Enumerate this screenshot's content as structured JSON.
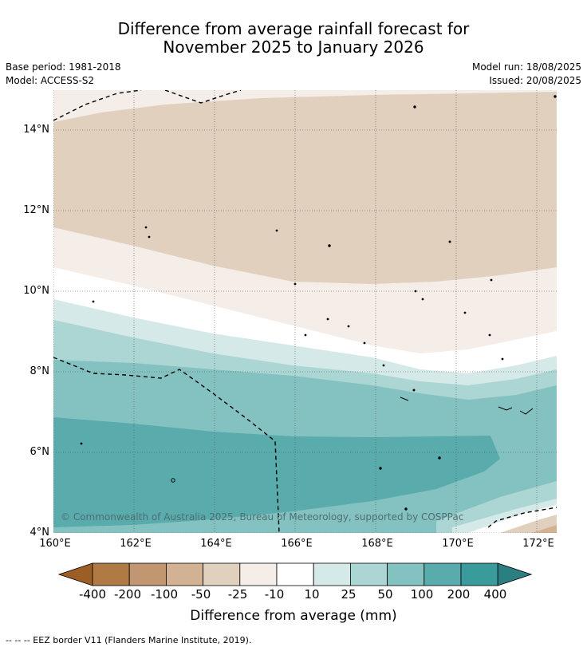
{
  "title": {
    "line1": "Difference from average rainfall forecast for",
    "line2": "November 2025 to January 2026"
  },
  "meta": {
    "base_period": "Base period: 1981-2018",
    "model": "Model: ACCESS-S2",
    "model_run": "Model run: 18/08/2025",
    "issued": "Issued: 20/08/2025"
  },
  "map": {
    "lon_labels": [
      "160°E",
      "162°E",
      "164°E",
      "166°E",
      "168°E",
      "170°E",
      "172°E"
    ],
    "lat_labels": [
      "14°N",
      "12°N",
      "10°N",
      "8°N",
      "6°N",
      "4°N"
    ],
    "copyright": "© Commonwealth of Australia 2025, Bureau of Meteorology, supported by COSPPac"
  },
  "colorbar": {
    "labels": [
      "-400",
      "-200",
      "-100",
      "-50",
      "-25",
      "-10",
      "10",
      "25",
      "50",
      "100",
      "200",
      "400"
    ],
    "colors": [
      "#9c5e26",
      "#b07a45",
      "#c29670",
      "#d2b293",
      "#e2d0bf",
      "#f4ede8",
      "#ffffff",
      "#d5e9e8",
      "#acd6d4",
      "#84c2c1",
      "#5aabac",
      "#3a9b9b",
      "#2c7f80"
    ],
    "title": "Difference from average (mm)"
  },
  "footnote": "--  --  -- EEZ border V11 (Flanders Marine Institute, 2019)."
}
